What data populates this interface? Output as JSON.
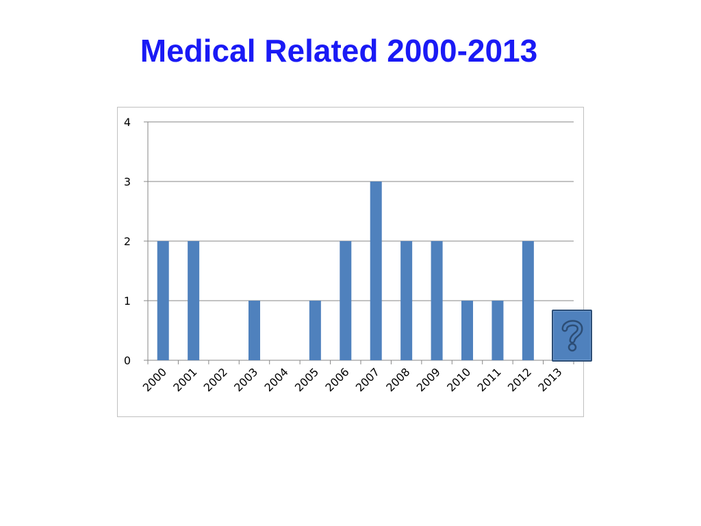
{
  "slide": {
    "title": "Medical Related 2000-2013"
  },
  "help_button": {
    "icon": "question-mark-icon",
    "color": "#4f81bd"
  },
  "chart_data": {
    "type": "bar",
    "title": "",
    "xlabel": "",
    "ylabel": "",
    "categories": [
      "2000",
      "2001",
      "2002",
      "2003",
      "2004",
      "2005",
      "2006",
      "2007",
      "2008",
      "2009",
      "2010",
      "2011",
      "2012",
      "2013"
    ],
    "values": [
      2,
      2,
      0,
      1,
      0,
      1,
      2,
      3,
      2,
      2,
      1,
      1,
      2,
      0
    ],
    "ylim": [
      0,
      4
    ],
    "yticks": [
      "0",
      "1",
      "2",
      "3",
      "4"
    ],
    "grid": true,
    "legend": "none",
    "bar_color": "#4f81bd",
    "grid_color": "#868686"
  }
}
